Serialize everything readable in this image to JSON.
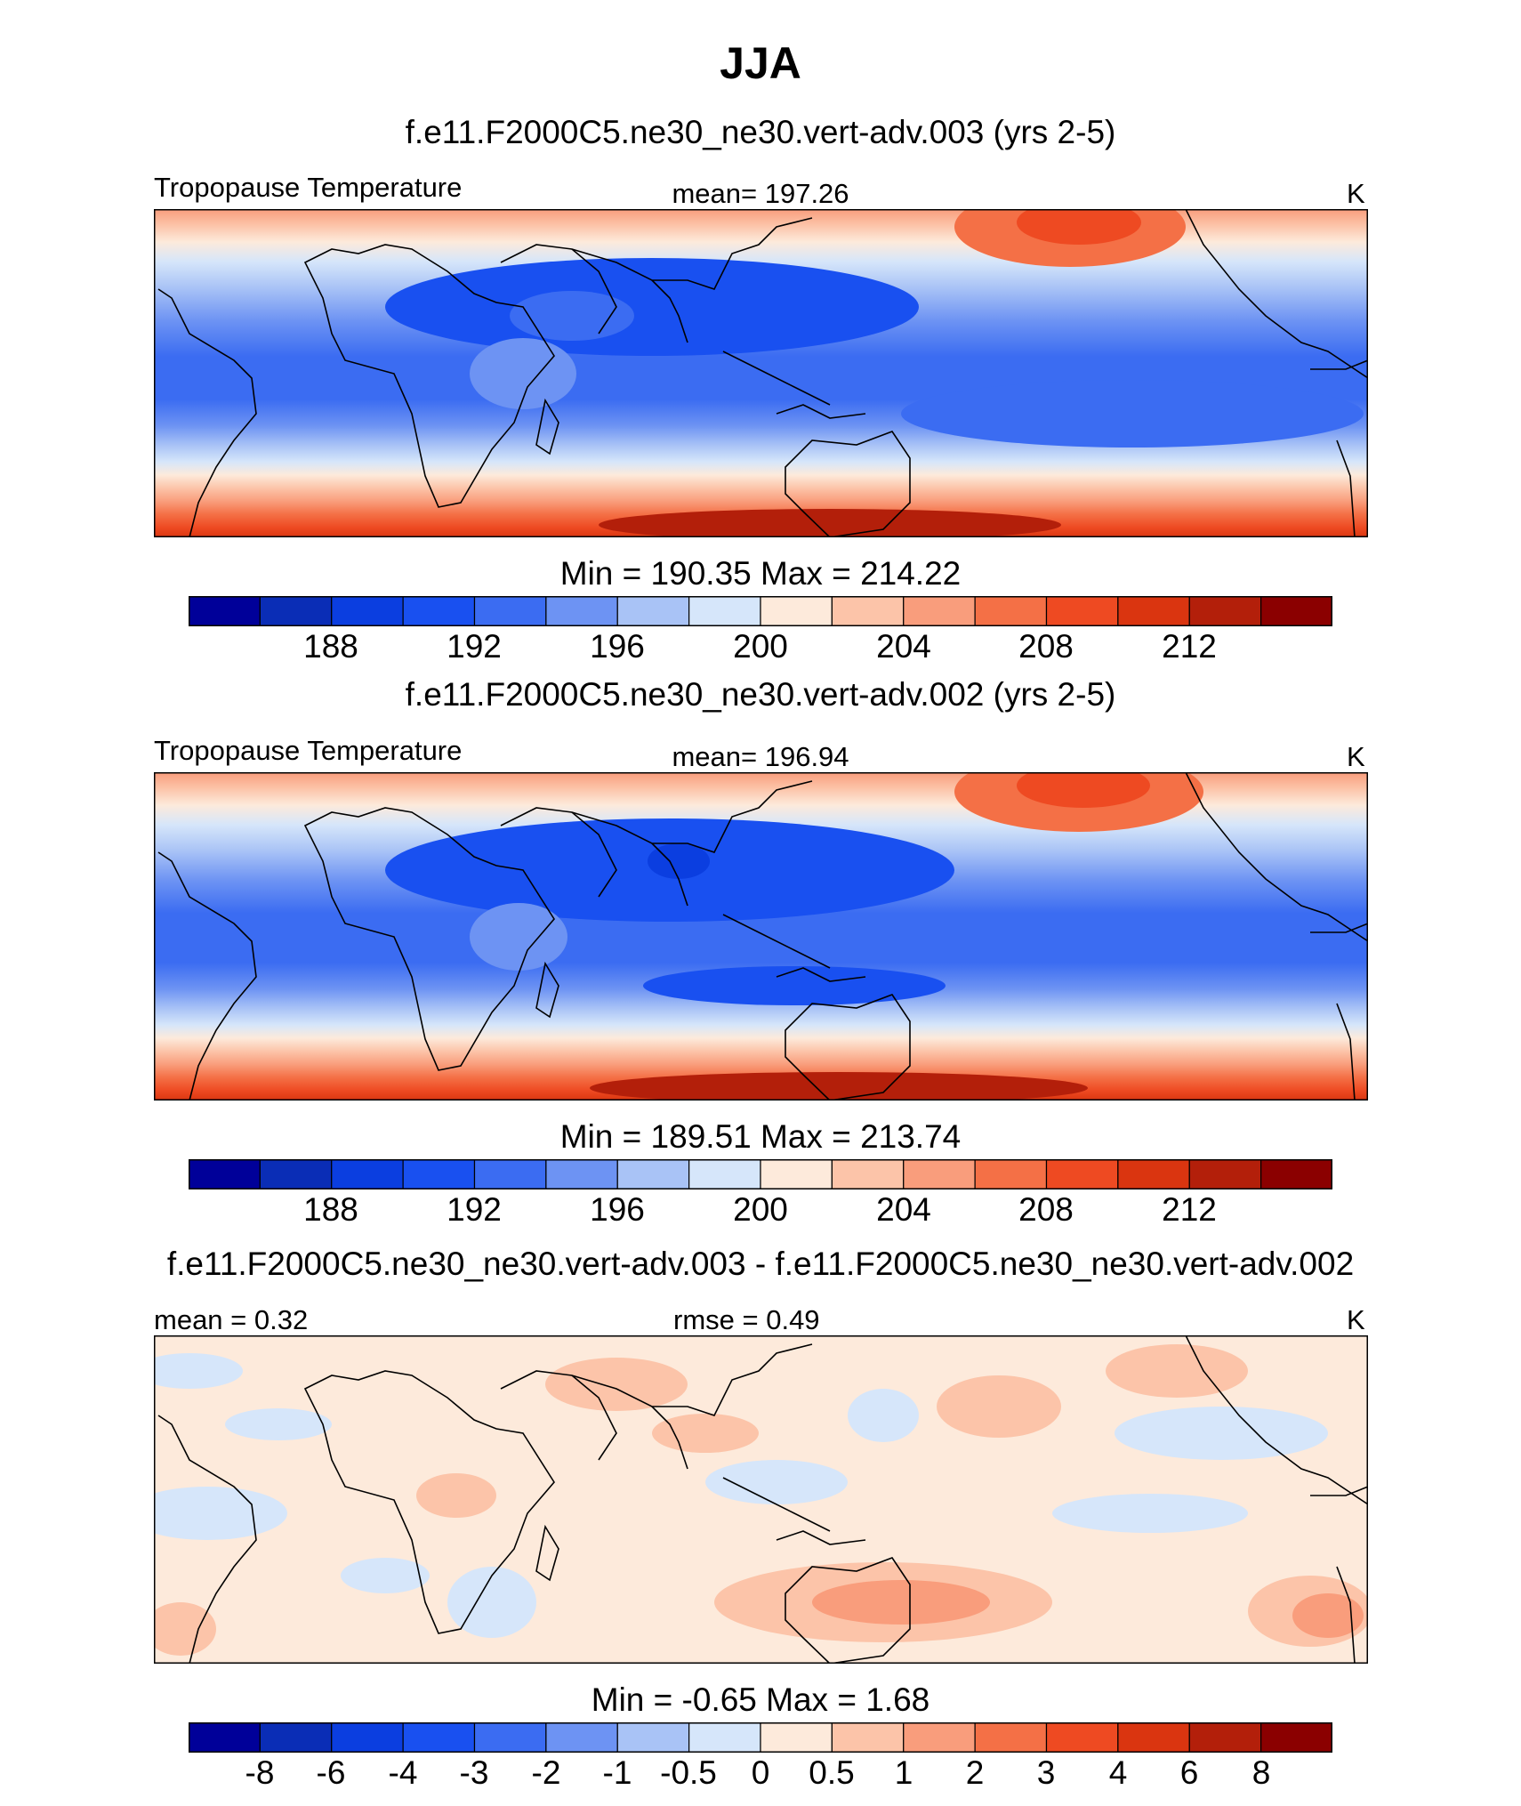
{
  "figure": {
    "title": "JJA"
  },
  "panels": [
    {
      "case_title": "f.e11.F2000C5.ne30_ne30.vert-adv.003 (yrs 2-5)",
      "left_label": "Tropopause Temperature",
      "center_label": "mean= 197.26",
      "units": "K",
      "minmax": "Min = 190.35 Max = 214.22",
      "colorbar": {
        "colors": [
          "#000099",
          "#0a2db6",
          "#0b3ee0",
          "#1950f0",
          "#3b6cf2",
          "#6d93f3",
          "#a9c3f6",
          "#d6e6fa",
          "#fdeadb",
          "#fcc4a9",
          "#f99d7c",
          "#f47046",
          "#ee4a22",
          "#da3510",
          "#b31f0a",
          "#8b0000"
        ],
        "tick_labels": [
          "188",
          "192",
          "196",
          "200",
          "204",
          "208",
          "212"
        ]
      },
      "chart_data": {
        "type": "filled-contour map",
        "variable": "Tropopause Temperature",
        "units": "K",
        "mean": 197.26,
        "min": 190.35,
        "max": 214.22,
        "levels": [
          186,
          188,
          190,
          192,
          194,
          196,
          198,
          200,
          202,
          204,
          206,
          208,
          210,
          212,
          214
        ],
        "colorbar_ticks": [
          188,
          192,
          196,
          200,
          204,
          208,
          212
        ]
      }
    },
    {
      "case_title": "f.e11.F2000C5.ne30_ne30.vert-adv.002 (yrs 2-5)",
      "left_label": "Tropopause Temperature",
      "center_label": "mean= 196.94",
      "units": "K",
      "minmax": "Min = 189.51 Max = 213.74",
      "colorbar": {
        "colors": [
          "#000099",
          "#0a2db6",
          "#0b3ee0",
          "#1950f0",
          "#3b6cf2",
          "#6d93f3",
          "#a9c3f6",
          "#d6e6fa",
          "#fdeadb",
          "#fcc4a9",
          "#f99d7c",
          "#f47046",
          "#ee4a22",
          "#da3510",
          "#b31f0a",
          "#8b0000"
        ],
        "tick_labels": [
          "188",
          "192",
          "196",
          "200",
          "204",
          "208",
          "212"
        ]
      },
      "chart_data": {
        "type": "filled-contour map",
        "variable": "Tropopause Temperature",
        "units": "K",
        "mean": 196.94,
        "min": 189.51,
        "max": 213.74,
        "levels": [
          186,
          188,
          190,
          192,
          194,
          196,
          198,
          200,
          202,
          204,
          206,
          208,
          210,
          212,
          214
        ],
        "colorbar_ticks": [
          188,
          192,
          196,
          200,
          204,
          208,
          212
        ]
      }
    },
    {
      "case_title": "f.e11.F2000C5.ne30_ne30.vert-adv.003 - f.e11.F2000C5.ne30_ne30.vert-adv.002",
      "left_label": "mean =   0.32",
      "center_label": "rmse =   0.49",
      "units": "K",
      "minmax": "Min =  -0.65 Max =    1.68",
      "colorbar": {
        "colors": [
          "#000099",
          "#0a2db6",
          "#0b3ee0",
          "#1950f0",
          "#3b6cf2",
          "#6d93f3",
          "#a9c3f6",
          "#d6e6fa",
          "#fdeadb",
          "#fcc4a9",
          "#f99d7c",
          "#f47046",
          "#ee4a22",
          "#da3510",
          "#b31f0a",
          "#8b0000"
        ],
        "tick_labels": [
          "-8",
          "-6",
          "-4",
          "-3",
          "-2",
          "-1",
          "-0.5",
          "0",
          "0.5",
          "1",
          "2",
          "3",
          "4",
          "6",
          "8"
        ]
      },
      "chart_data": {
        "type": "filled-contour difference map",
        "units": "K",
        "mean": 0.32,
        "rmse": 0.49,
        "min": -0.65,
        "max": 1.68,
        "levels": [
          -8,
          -6,
          -4,
          -3,
          -2,
          -1,
          -0.5,
          0,
          0.5,
          1,
          2,
          3,
          4,
          6,
          8
        ]
      }
    }
  ]
}
